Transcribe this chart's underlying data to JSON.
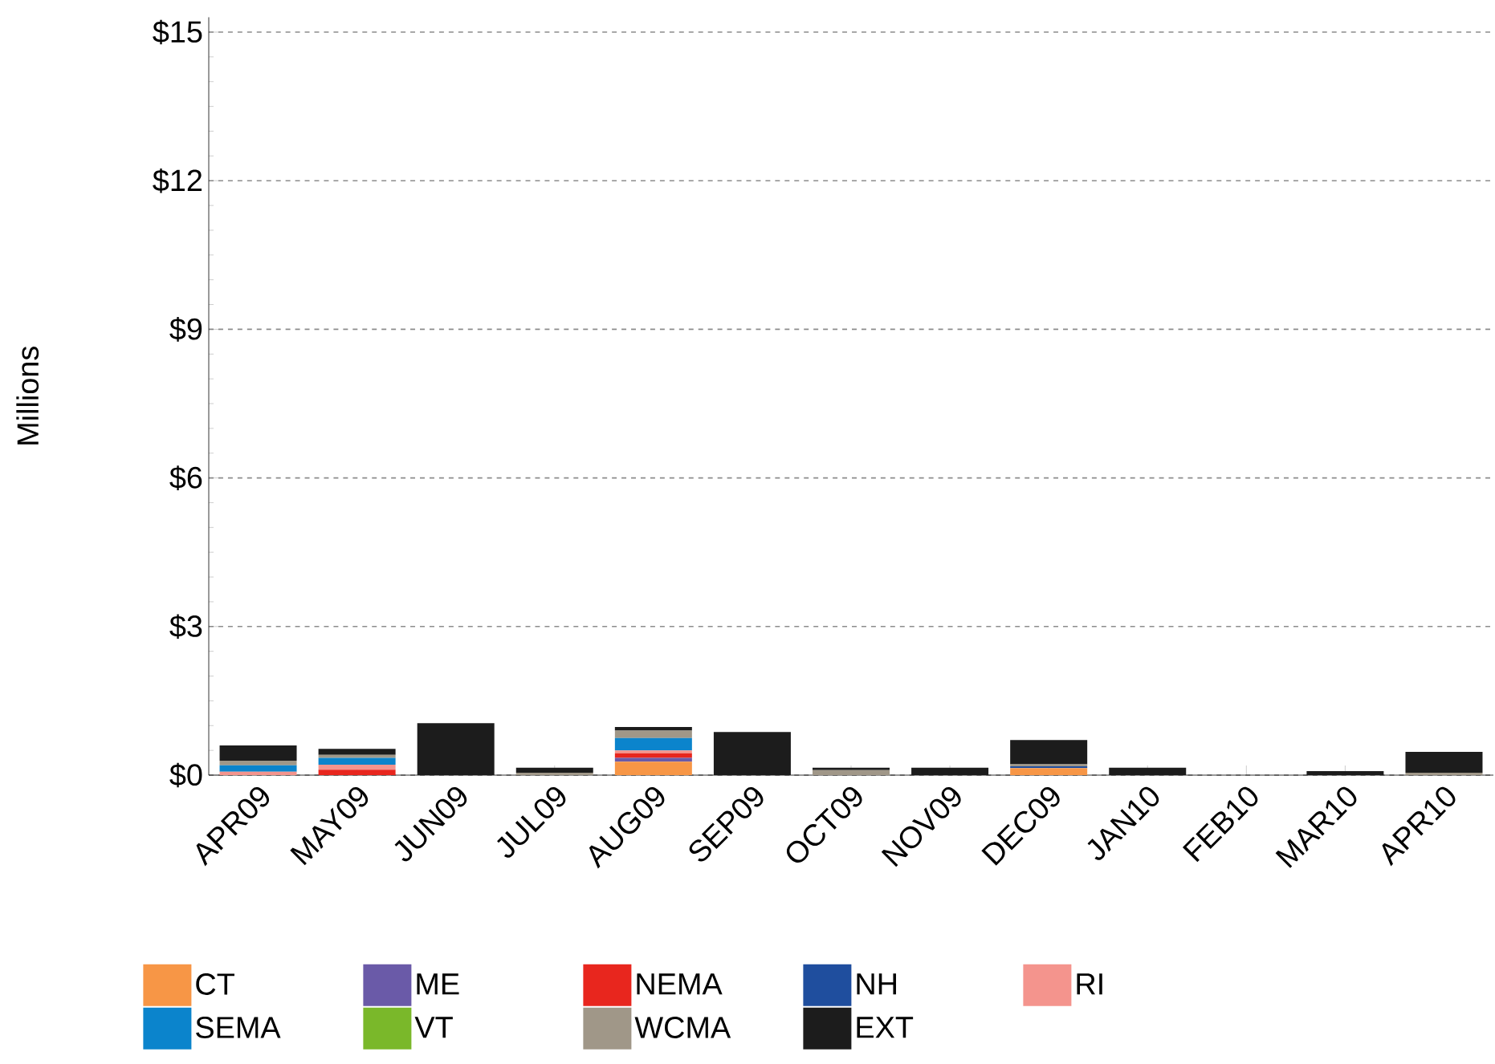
{
  "chart_data": {
    "type": "bar",
    "stacked": true,
    "ylabel": "Millions",
    "categories": [
      "APR09",
      "MAY09",
      "JUN09",
      "JUL09",
      "AUG09",
      "SEP09",
      "OCT09",
      "NOV09",
      "DEC09",
      "JAN10",
      "FEB10",
      "MAR10",
      "APR10"
    ],
    "series": [
      {
        "name": "CT",
        "color": "#f79646",
        "values": [
          0,
          0,
          0,
          0,
          0.27,
          0,
          0,
          0,
          0.14,
          0,
          0,
          0,
          0
        ]
      },
      {
        "name": "ME",
        "color": "#6a5aa8",
        "values": [
          0,
          0,
          0,
          0,
          0.08,
          0,
          0,
          0,
          0,
          0,
          0,
          0,
          0
        ]
      },
      {
        "name": "NEMA",
        "color": "#e8261e",
        "values": [
          0,
          0.11,
          0,
          0,
          0.09,
          0,
          0,
          0,
          0,
          0,
          0,
          0,
          0
        ]
      },
      {
        "name": "NH",
        "color": "#1f4e9e",
        "values": [
          0,
          0,
          0,
          0,
          0,
          0,
          0,
          0,
          0.04,
          0,
          0,
          0,
          0
        ]
      },
      {
        "name": "RI",
        "color": "#f4948d",
        "values": [
          0.07,
          0.1,
          0,
          0,
          0.06,
          0,
          0,
          0,
          0,
          0,
          0,
          0,
          0
        ]
      },
      {
        "name": "SEMA",
        "color": "#0b84cc",
        "values": [
          0.13,
          0.14,
          0,
          0,
          0.25,
          0,
          0,
          0,
          0,
          0,
          0,
          0,
          0
        ]
      },
      {
        "name": "VT",
        "color": "#7ab82a",
        "values": [
          0,
          0,
          0,
          0,
          0,
          0,
          0,
          0,
          0,
          0,
          0,
          0,
          0
        ]
      },
      {
        "name": "WCMA",
        "color": "#a09788",
        "values": [
          0.09,
          0.06,
          null,
          0.05,
          0.15,
          0,
          0.1,
          0,
          0.04,
          0,
          null,
          0,
          0.05
        ]
      },
      {
        "name": "EXT",
        "color": "#1c1c1c",
        "values": [
          0.31,
          0.12,
          1.05,
          0.1,
          0.07,
          0.87,
          0.05,
          0.15,
          0.49,
          0.15,
          0,
          0.08,
          0.42
        ]
      }
    ],
    "ylim": [
      0,
      15.3
    ],
    "yticks": [
      {
        "value": 0,
        "label": "$0"
      },
      {
        "value": 3,
        "label": "$3"
      },
      {
        "value": 6,
        "label": "$6"
      },
      {
        "value": 9,
        "label": "$9"
      },
      {
        "value": 12,
        "label": "$12"
      },
      {
        "value": 15,
        "label": "$15"
      }
    ],
    "grid": "y",
    "legend": "bottom"
  }
}
